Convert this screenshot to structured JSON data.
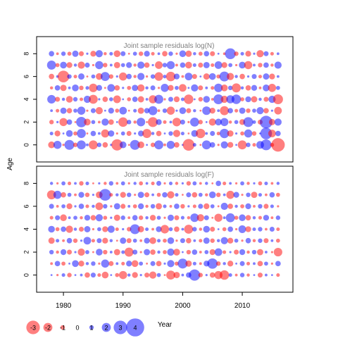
{
  "colors": {
    "positive": "#0000ff",
    "negative": "#ff0000",
    "bubble_alpha": 0.5,
    "frame": "#000000",
    "title_text": "#808080"
  },
  "shared_axes": {
    "xlabel": "Year",
    "ylabel": "Age",
    "xlim": [
      1975.5,
      2018.5
    ],
    "ylim": [
      -1.5,
      9.5
    ],
    "x_ticks": [
      1980,
      1990,
      2000,
      2010
    ],
    "y_ticks": [
      0,
      2,
      4,
      6,
      8
    ]
  },
  "legend": {
    "values": [
      -3,
      -2,
      -1,
      0,
      1,
      2,
      3,
      4
    ],
    "labels": [
      "-3",
      "-2",
      "-1",
      "0",
      "1",
      "2",
      "3",
      "4"
    ],
    "placement": "bottom-left"
  },
  "chart_data": [
    {
      "type": "scatter",
      "subtype": "bubble",
      "title": "Joint sample residuals log(N)",
      "x_range": [
        1978,
        2016
      ],
      "ages": [
        0,
        1,
        2,
        3,
        4,
        5,
        6,
        7,
        8
      ],
      "residuals": [
        [
          -1.5,
          1.8,
          -0.5,
          2.2,
          -1.0,
          2.0,
          0.6,
          -2.0,
          1.0,
          -1.2,
          0.5,
          -2.5,
          1.5,
          -0.4,
          2.2,
          -1.5,
          0.3,
          -1.0,
          2.0,
          -0.6,
          1.8,
          -1.2,
          0.4,
          -2.6,
          0.8,
          -0.3,
          2.0,
          1.2,
          -0.5,
          1.6,
          -1.3,
          0.2,
          -2.0,
          1.0,
          -0.8,
          1.7,
          2.4,
          -0.9,
          -3.0
        ],
        [
          0.8,
          -1.3,
          0.4,
          1.5,
          -0.9,
          2.0,
          -0.3,
          1.2,
          0.6,
          -1.8,
          1.4,
          -0.5,
          0.9,
          -1.1,
          0.5,
          1.3,
          -2.0,
          0.7,
          -1.2,
          0.3,
          1.0,
          -1.6,
          0.8,
          -0.4,
          1.5,
          -2.1,
          0.6,
          1.1,
          -0.8,
          2.1,
          -1.4,
          0.5,
          -0.9,
          1.8,
          -1.0,
          0.4,
          2.6,
          -1.7,
          1.2
        ],
        [
          -1.0,
          0.5,
          -1.8,
          1.2,
          -0.4,
          2.3,
          -1.5,
          0.9,
          -0.6,
          1.6,
          -1.2,
          0.3,
          -2.1,
          1.0,
          -0.7,
          1.9,
          -0.3,
          -2.2,
          1.3,
          -0.8,
          0.6,
          -1.9,
          1.1,
          -0.5,
          2.0,
          -1.0,
          0.4,
          -1.6,
          1.5,
          1.8,
          -0.7,
          0.9,
          -1.3,
          2.2,
          0.8,
          -1.1,
          2.8,
          -1.4,
          1.6
        ],
        [
          0.6,
          -0.8,
          1.4,
          -1.2,
          0.9,
          1.8,
          -0.5,
          1.1,
          -1.6,
          0.4,
          1.3,
          -0.9,
          1.7,
          -0.3,
          0.8,
          -1.4,
          1.2,
          2.0,
          -0.6,
          1.0,
          -1.8,
          0.5,
          1.5,
          -1.1,
          0.7,
          -0.4,
          1.9,
          -1.3,
          0.6,
          -2.0,
          1.2,
          -0.8,
          1.4,
          -1.0,
          0.9,
          1.6,
          -1.2,
          0.5,
          -1.7
        ],
        [
          1.9,
          -1.1,
          0.7,
          -1.5,
          1.0,
          -0.8,
          1.6,
          -2.0,
          0.5,
          -1.2,
          0.9,
          -1.7,
          0.4,
          -0.9,
          1.2,
          -1.4,
          0.6,
          -1.8,
          2.0,
          -0.5,
          1.1,
          -1.3,
          0.8,
          -2.1,
          0.3,
          -1.0,
          1.5,
          -0.6,
          2.2,
          -1.6,
          1.8,
          2.1,
          -0.9,
          1.3,
          -1.4,
          0.7,
          -1.1,
          1.6,
          -2.2
        ],
        [
          -0.7,
          1.2,
          -1.4,
          0.6,
          1.5,
          -1.0,
          0.8,
          -1.9,
          1.3,
          -0.4,
          1.7,
          -1.2,
          0.5,
          -0.9,
          1.4,
          -1.6,
          0.7,
          1.1,
          -0.5,
          1.8,
          -1.3,
          0.9,
          -1.7,
          0.4,
          1.6,
          -1.1,
          0.6,
          -0.8,
          1.9,
          -1.5,
          1.0,
          -2.0,
          0.7,
          -1.2,
          1.3,
          -0.6,
          1.5,
          -1.8,
          0.9
        ],
        [
          -1.2,
          0.6,
          -2.6,
          1.0,
          -0.8,
          1.4,
          -0.4,
          0.9,
          -1.5,
          2.0,
          -1.0,
          0.5,
          -1.8,
          1.2,
          -0.7,
          1.6,
          -0.5,
          1.0,
          -1.9,
          0.8,
          -2.1,
          1.3,
          -0.6,
          1.7,
          -1.1,
          0.4,
          -1.4,
          1.5,
          -0.9,
          2.2,
          -1.6,
          0.7,
          -1.2,
          0.5,
          1.1,
          -0.8,
          1.4,
          -1.3,
          0.6
        ],
        [
          2.0,
          -0.9,
          1.5,
          -1.3,
          0.7,
          -1.6,
          1.1,
          -0.5,
          1.8,
          -1.0,
          0.6,
          -1.4,
          0.9,
          1.3,
          -0.7,
          1.6,
          -1.2,
          0.5,
          -1.7,
          1.0,
          1.8,
          -0.6,
          1.2,
          -1.5,
          0.8,
          -1.1,
          1.4,
          -0.8,
          1.7,
          -1.3,
          0.9,
          -0.5,
          1.5,
          -1.8,
          0.6,
          -1.0,
          1.2,
          -0.7,
          1.6
        ],
        [
          1.2,
          -0.6,
          1.0,
          -0.9,
          1.4,
          -1.1,
          0.5,
          -1.3,
          1.6,
          -0.7,
          0.8,
          -1.5,
          1.1,
          -0.4,
          0.9,
          -1.0,
          1.3,
          -0.8,
          0.6,
          -1.2,
          1.0,
          -0.5,
          1.5,
          -1.4,
          0.7,
          -0.9,
          1.2,
          -1.1,
          0.4,
          -0.6,
          2.4,
          -1.0,
          0.8,
          -1.3,
          0.5,
          -1.6,
          1.1,
          -0.8,
          0.6
        ]
      ]
    },
    {
      "type": "scatter",
      "subtype": "bubble",
      "title": "Joint sample residuals log(F)",
      "x_range": [
        1978,
        2016
      ],
      "ages": [
        0,
        1,
        2,
        3,
        4,
        5,
        6,
        7,
        8
      ],
      "residuals": [
        [
          0.2,
          -0.5,
          0.8,
          -1.0,
          0.3,
          0.6,
          -1.2,
          1.1,
          -0.8,
          -1.5,
          0.4,
          -0.9,
          -1.8,
          0.7,
          -1.3,
          0.5,
          -1.1,
          -1.6,
          0.9,
          -0.4,
          -2.0,
          -1.4,
          0.6,
          1.2,
          2.5,
          -1.0,
          0.5,
          -1.2,
          -1.8,
          -2.1,
          0.8,
          -0.6,
          1.0,
          -0.7,
          0.4,
          -1.1,
          0.6,
          0.3,
          -0.8
        ],
        [
          -0.6,
          1.2,
          -0.9,
          0.4,
          1.5,
          -1.3,
          0.7,
          1.0,
          -0.5,
          1.8,
          -1.1,
          0.6,
          -0.8,
          1.3,
          -1.5,
          0.9,
          -0.4,
          1.1,
          -1.2,
          0.5,
          1.6,
          -0.9,
          2.2,
          -1.4,
          0.8,
          -0.6,
          1.3,
          2.3,
          -1.0,
          0.7,
          -1.3,
          0.4,
          1.1,
          -0.8,
          0.6,
          -1.2,
          0.9,
          -0.5,
          1.2
        ],
        [
          1.0,
          -0.7,
          1.3,
          -1.1,
          0.5,
          -1.6,
          0.9,
          -0.4,
          1.5,
          -1.0,
          0.6,
          -1.4,
          0.8,
          -2.0,
          1.1,
          -0.5,
          1.4,
          -1.2,
          0.7,
          -0.9,
          1.6,
          -1.5,
          0.4,
          -1.0,
          1.2,
          -0.6,
          0.9,
          -1.3,
          1.7,
          -0.8,
          0.5,
          -1.1,
          1.3,
          -0.7,
          1.0,
          -1.4,
          0.6,
          -0.5,
          -1.9
        ],
        [
          -1.4,
          0.8,
          -0.6,
          1.2,
          -1.0,
          0.5,
          1.7,
          -0.8,
          1.1,
          -1.3,
          0.7,
          -0.4,
          1.4,
          -1.1,
          0.9,
          -0.6,
          1.3,
          -1.5,
          0.8,
          -0.9,
          1.5,
          -0.5,
          1.1,
          -1.2,
          0.6,
          -0.8,
          1.4,
          -1.0,
          0.7,
          1.6,
          -1.3,
          0.9,
          -0.5,
          1.2,
          -0.7,
          1.0,
          -1.1,
          0.6,
          -0.9
        ],
        [
          1.5,
          -0.9,
          1.2,
          -1.6,
          0.7,
          -1.1,
          1.4,
          -0.5,
          0.9,
          -1.3,
          1.6,
          -0.8,
          0.5,
          -1.0,
          2.2,
          -1.4,
          0.8,
          -0.6,
          1.3,
          -1.9,
          0.9,
          -1.2,
          0.6,
          -2.0,
          1.0,
          -0.7,
          1.5,
          -1.1,
          0.4,
          -0.9,
          1.2,
          -0.5,
          1.7,
          -1.3,
          0.8,
          1.0,
          -0.6,
          1.1,
          -0.8
        ],
        [
          -0.8,
          1.1,
          -1.5,
          0.6,
          0.9,
          -0.7,
          1.3,
          -1.2,
          1.6,
          -0.9,
          0.5,
          -1.4,
          1.0,
          -0.6,
          1.2,
          -1.0,
          0.7,
          -1.3,
          0.9,
          -0.5,
          1.4,
          -1.1,
          0.8,
          -0.7,
          1.9,
          -1.6,
          1.1,
          -0.4,
          -1.8,
          0.6,
          2.0,
          -0.9,
          1.5,
          -1.2,
          0.7,
          -0.8,
          1.3,
          -0.6,
          1.0
        ],
        [
          1.1,
          -0.6,
          0.9,
          -1.3,
          0.5,
          1.2,
          -0.8,
          0.7,
          -1.7,
          1.0,
          -0.5,
          1.4,
          -1.1,
          0.6,
          -0.9,
          1.3,
          -0.7,
          1.0,
          -1.4,
          0.8,
          -0.6,
          1.2,
          -1.0,
          0.5,
          -0.8,
          1.1,
          -1.3,
          0.9,
          -0.4,
          1.6,
          -1.2,
          0.7,
          -0.9,
          1.3,
          -0.6,
          1.0,
          -1.1,
          0.8,
          -0.5
        ],
        [
          -2.0,
          1.8,
          -1.2,
          0.9,
          -0.6,
          1.3,
          -1.0,
          0.5,
          -1.5,
          2.6,
          -0.8,
          0.7,
          -1.3,
          1.0,
          -0.5,
          1.4,
          -1.1,
          0.6,
          -0.9,
          1.2,
          -1.6,
          0.8,
          -0.4,
          1.1,
          -1.2,
          0.9,
          -0.7,
          1.5,
          -1.0,
          0.6,
          -1.8,
          1.3,
          -0.5,
          1.0,
          -1.4,
          0.8,
          -0.6,
          1.2,
          -0.9
        ],
        [
          0.7,
          -0.5,
          0.9,
          -0.8,
          0.6,
          -1.0,
          0.8,
          -0.4,
          0.5,
          -0.7,
          1.0,
          -0.6,
          0.9,
          -0.5,
          0.7,
          -0.9,
          0.6,
          -0.8,
          1.1,
          -0.5,
          0.8,
          -0.7,
          0.5,
          -1.0,
          0.9,
          -0.6,
          0.7,
          -0.4,
          1.2,
          -0.8,
          0.6,
          -0.5,
          0.9,
          -0.7,
          0.5,
          -0.9,
          0.8,
          -0.6,
          0.7
        ]
      ]
    }
  ]
}
